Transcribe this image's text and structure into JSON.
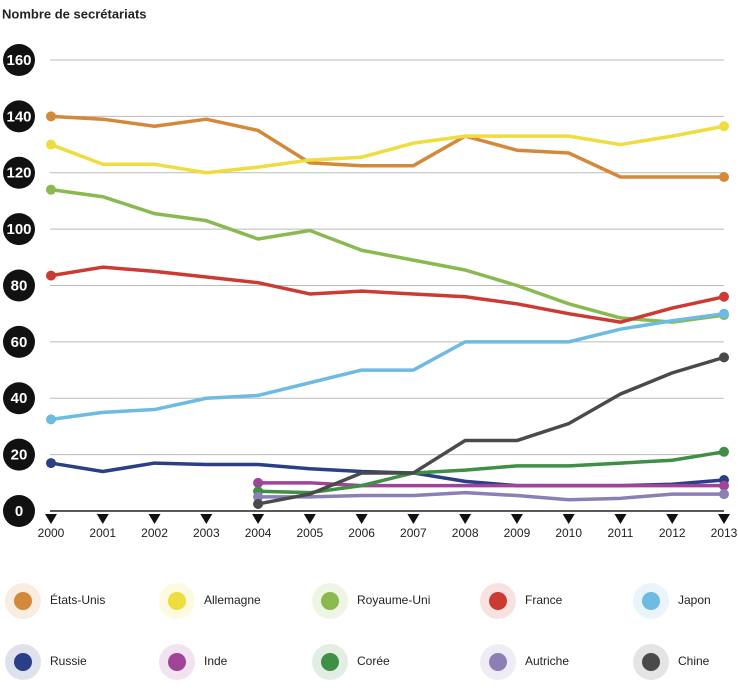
{
  "chart_data": {
    "type": "line",
    "title": "Nombre de secrétariats",
    "x": [
      "2000",
      "2001",
      "2002",
      "2003",
      "2004",
      "2005",
      "2006",
      "2007",
      "2008",
      "2009",
      "2010",
      "2011",
      "2012",
      "2013"
    ],
    "ylim": [
      0,
      160
    ],
    "yticks": [
      0,
      20,
      40,
      60,
      80,
      100,
      120,
      140,
      160
    ],
    "grid": true,
    "series": [
      {
        "name": "États-Unis",
        "color": "#d4893a",
        "values": [
          140,
          139,
          136.5,
          139,
          135,
          123.5,
          122.5,
          122.5,
          133,
          128,
          127,
          118.5,
          118.5,
          118.5
        ]
      },
      {
        "name": "Allemagne",
        "color": "#efdc3e",
        "values": [
          130,
          123,
          123,
          120,
          122,
          124.5,
          125.5,
          130.5,
          133,
          133,
          133,
          130,
          133,
          136.5
        ]
      },
      {
        "name": "Royaume-Uni",
        "color": "#8ab950",
        "values": [
          114,
          111.5,
          105.5,
          103,
          96.5,
          99.5,
          92.5,
          89,
          85.5,
          80,
          73.5,
          68.5,
          67,
          69.5
        ]
      },
      {
        "name": "France",
        "color": "#cc3b33",
        "values": [
          83.5,
          86.5,
          85,
          83,
          81,
          77,
          78,
          77,
          76,
          73.5,
          70,
          67,
          72,
          76
        ]
      },
      {
        "name": "Japon",
        "color": "#6dbbe0",
        "values": [
          32.5,
          35,
          36,
          40,
          41,
          45.5,
          50,
          50,
          60,
          60,
          60,
          64.5,
          67.5,
          70
        ]
      },
      {
        "name": "Russie",
        "color": "#2b3f86",
        "values": [
          17,
          14,
          17,
          16.5,
          16.5,
          15,
          14,
          13.5,
          10.5,
          9,
          9,
          9,
          9.5,
          11
        ]
      },
      {
        "name": "Inde",
        "color": "#a0449a",
        "values": [
          null,
          null,
          null,
          null,
          10,
          10,
          9,
          9,
          9,
          9,
          9,
          9,
          9,
          9
        ]
      },
      {
        "name": "Corée",
        "color": "#3f8f45",
        "values": [
          null,
          null,
          null,
          null,
          7,
          6.5,
          9,
          13.5,
          14.5,
          16,
          16,
          17,
          18,
          21
        ]
      },
      {
        "name": "Autriche",
        "color": "#8b7fb6",
        "values": [
          null,
          null,
          null,
          null,
          5,
          5,
          5.5,
          5.5,
          6.5,
          5.5,
          4,
          4.5,
          6,
          6
        ]
      },
      {
        "name": "Chine",
        "color": "#4a4a4a",
        "values": [
          null,
          null,
          null,
          null,
          2.5,
          6,
          13.5,
          13.5,
          25,
          25,
          31,
          41.5,
          49,
          54.5
        ]
      }
    ]
  }
}
